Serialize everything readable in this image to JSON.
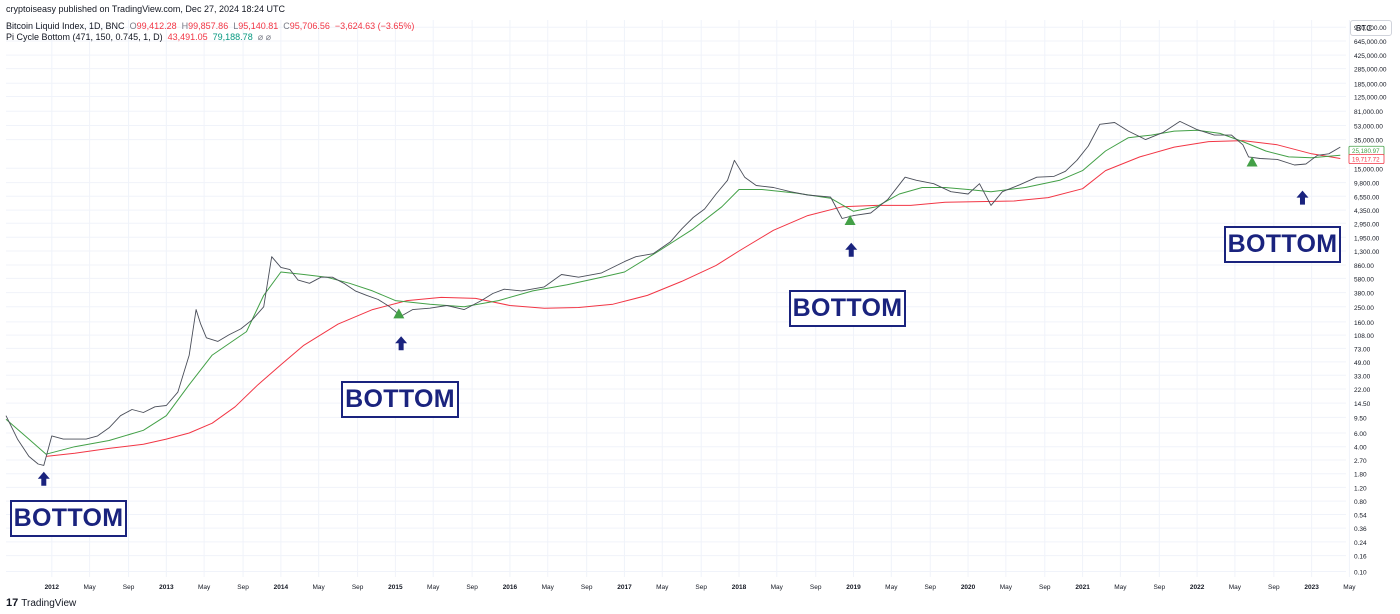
{
  "header": {
    "publish_line": "cryptoiseasy published on TradingView.com, Dec 27, 2024 18:24 UTC",
    "symbol_desc": "Bitcoin Liquid Index, 1D, BNC",
    "open_label": "O",
    "open_value": "99,412.28",
    "high_label": "H",
    "high_value": "99,857.86",
    "low_label": "L",
    "low_value": "95,140.81",
    "close_label": "C",
    "close_value": "95,706.56",
    "change_value": "−3,624.63 (−3.65%)",
    "indicator_desc": "Pi Cycle Bottom (471, 150, 0.745, 1, D)",
    "indicator_value_red": "43,491.05",
    "indicator_value_green": "79,188.78",
    "indicator_flags": "⌀  ⌀"
  },
  "ticker": "BTC",
  "brand": {
    "mark": "17",
    "name": "TradingView"
  },
  "colors": {
    "price": "#4a4e59",
    "green_ma": "#43a047",
    "red_ma": "#f23645",
    "annotation": "#1a237e",
    "marker": "#43a047",
    "grid": "#f0f3fa"
  },
  "annotations": [
    {
      "text": "BOTTOM",
      "arrow_year": 2011.93,
      "arrow_price": 1.55
    },
    {
      "text": "BOTTOM",
      "arrow_year": 2015.05,
      "arrow_price": 85
    },
    {
      "text": "BOTTOM",
      "arrow_year": 2018.98,
      "arrow_price": 1350
    },
    {
      "text": "BOTTOM",
      "arrow_year": 2022.92,
      "arrow_price": 6300
    }
  ],
  "chart_data": {
    "type": "line",
    "y_scale": "log",
    "x_unit": "year",
    "xlim": [
      2011.6,
      2023.3
    ],
    "ylim": [
      0.085,
      1200000
    ],
    "grid": true,
    "x_ticks": [
      {
        "x": 2012.0,
        "label": "2012",
        "major": true
      },
      {
        "x": 2012.33,
        "label": "May"
      },
      {
        "x": 2012.67,
        "label": "Sep"
      },
      {
        "x": 2013.0,
        "label": "2013",
        "major": true
      },
      {
        "x": 2013.33,
        "label": "May"
      },
      {
        "x": 2013.67,
        "label": "Sep"
      },
      {
        "x": 2014.0,
        "label": "2014",
        "major": true
      },
      {
        "x": 2014.33,
        "label": "May"
      },
      {
        "x": 2014.67,
        "label": "Sep"
      },
      {
        "x": 2015.0,
        "label": "2015",
        "major": true
      },
      {
        "x": 2015.33,
        "label": "May"
      },
      {
        "x": 2015.67,
        "label": "Sep"
      },
      {
        "x": 2016.0,
        "label": "2016",
        "major": true
      },
      {
        "x": 2016.33,
        "label": "May"
      },
      {
        "x": 2016.67,
        "label": "Sep"
      },
      {
        "x": 2017.0,
        "label": "2017",
        "major": true
      },
      {
        "x": 2017.33,
        "label": "May"
      },
      {
        "x": 2017.67,
        "label": "Sep"
      },
      {
        "x": 2018.0,
        "label": "2018",
        "major": true
      },
      {
        "x": 2018.33,
        "label": "May"
      },
      {
        "x": 2018.67,
        "label": "Sep"
      },
      {
        "x": 2019.0,
        "label": "2019",
        "major": true
      },
      {
        "x": 2019.33,
        "label": "May"
      },
      {
        "x": 2019.67,
        "label": "Sep"
      },
      {
        "x": 2020.0,
        "label": "2020",
        "major": true
      },
      {
        "x": 2020.33,
        "label": "May"
      },
      {
        "x": 2020.67,
        "label": "Sep"
      },
      {
        "x": 2021.0,
        "label": "2021",
        "major": true
      },
      {
        "x": 2021.33,
        "label": "May"
      },
      {
        "x": 2021.67,
        "label": "Sep"
      },
      {
        "x": 2022.0,
        "label": "2022",
        "major": true
      },
      {
        "x": 2022.33,
        "label": "May"
      },
      {
        "x": 2022.67,
        "label": "Sep"
      },
      {
        "x": 2023.0,
        "label": "2023",
        "major": true
      },
      {
        "x": 2023.33,
        "label": "May"
      }
    ],
    "y_ticks": [
      {
        "v": 970000,
        "label": "970,000.00"
      },
      {
        "v": 645000,
        "label": "645,000.00"
      },
      {
        "v": 425000,
        "label": "425,000.00"
      },
      {
        "v": 285000,
        "label": "285,000.00"
      },
      {
        "v": 185000,
        "label": "185,000.00"
      },
      {
        "v": 125000,
        "label": "125,000.00"
      },
      {
        "v": 81000,
        "label": "81,000.00"
      },
      {
        "v": 53000,
        "label": "53,000.00"
      },
      {
        "v": 35000,
        "label": "35,000.00"
      },
      {
        "v": 15000,
        "label": "15,000.00"
      },
      {
        "v": 9800,
        "label": "9,800.00"
      },
      {
        "v": 6550,
        "label": "6,550.00"
      },
      {
        "v": 4350,
        "label": "4,350.00"
      },
      {
        "v": 2950,
        "label": "2,950.00"
      },
      {
        "v": 1950,
        "label": "1,950.00"
      },
      {
        "v": 1300,
        "label": "1,300.00"
      },
      {
        "v": 860,
        "label": "860.00"
      },
      {
        "v": 580,
        "label": "580.00"
      },
      {
        "v": 380,
        "label": "380.00"
      },
      {
        "v": 250,
        "label": "250.00"
      },
      {
        "v": 160,
        "label": "160.00"
      },
      {
        "v": 108,
        "label": "108.00"
      },
      {
        "v": 73,
        "label": "73.00"
      },
      {
        "v": 49,
        "label": "49.00"
      },
      {
        "v": 33,
        "label": "33.00"
      },
      {
        "v": 22,
        "label": "22.00"
      },
      {
        "v": 14.5,
        "label": "14.50"
      },
      {
        "v": 9.5,
        "label": "9.50"
      },
      {
        "v": 6,
        "label": "6.00"
      },
      {
        "v": 4,
        "label": "4.00"
      },
      {
        "v": 2.7,
        "label": "2.70"
      },
      {
        "v": 1.8,
        "label": "1.80"
      },
      {
        "v": 1.2,
        "label": "1.20"
      },
      {
        "v": 0.8,
        "label": "0.80"
      },
      {
        "v": 0.54,
        "label": "0.54"
      },
      {
        "v": 0.36,
        "label": "0.36"
      },
      {
        "v": 0.24,
        "label": "0.24"
      },
      {
        "v": 0.16,
        "label": "0.16"
      },
      {
        "v": 0.1,
        "label": "0.10"
      }
    ],
    "value_tags": [
      {
        "v": 25180.97,
        "label": "25,180.97",
        "color": "#43a047"
      },
      {
        "v": 19717.72,
        "label": "19,717.72",
        "color": "#f23645"
      }
    ],
    "series": [
      {
        "name": "Bitcoin Liquid Index",
        "x": [
          2011.6,
          2011.7,
          2011.8,
          2011.88,
          2011.93,
          2012.0,
          2012.1,
          2012.2,
          2012.3,
          2012.4,
          2012.5,
          2012.6,
          2012.7,
          2012.8,
          2012.9,
          2013.0,
          2013.1,
          2013.2,
          2013.26,
          2013.3,
          2013.35,
          2013.45,
          2013.55,
          2013.65,
          2013.75,
          2013.85,
          2013.92,
          2014.0,
          2014.08,
          2014.15,
          2014.25,
          2014.35,
          2014.45,
          2014.55,
          2014.65,
          2014.75,
          2014.85,
          2014.95,
          2015.05,
          2015.15,
          2015.3,
          2015.45,
          2015.6,
          2015.75,
          2015.85,
          2015.95,
          2016.1,
          2016.3,
          2016.45,
          2016.6,
          2016.8,
          2017.0,
          2017.1,
          2017.25,
          2017.4,
          2017.5,
          2017.6,
          2017.7,
          2017.8,
          2017.9,
          2017.96,
          2018.05,
          2018.15,
          2018.3,
          2018.45,
          2018.6,
          2018.8,
          2018.9,
          2019.0,
          2019.15,
          2019.3,
          2019.45,
          2019.55,
          2019.7,
          2019.85,
          2020.0,
          2020.1,
          2020.2,
          2020.3,
          2020.45,
          2020.6,
          2020.75,
          2020.85,
          2020.95,
          2021.05,
          2021.15,
          2021.28,
          2021.4,
          2021.55,
          2021.7,
          2021.85,
          2022.0,
          2022.15,
          2022.3,
          2022.4,
          2022.45,
          2022.55,
          2022.7,
          2022.85,
          2022.95,
          2023.05,
          2023.15,
          2023.25
        ],
        "values": [
          10,
          5,
          3,
          2.4,
          2.3,
          5.5,
          5,
          5,
          5,
          5.5,
          7,
          10,
          12,
          11,
          13,
          13.5,
          20,
          60,
          230,
          150,
          100,
          90,
          110,
          130,
          170,
          250,
          1100,
          800,
          750,
          550,
          500,
          600,
          600,
          500,
          400,
          350,
          310,
          250,
          190,
          230,
          240,
          260,
          230,
          300,
          370,
          420,
          400,
          450,
          650,
          600,
          680,
          950,
          1100,
          1200,
          1700,
          2500,
          3500,
          4500,
          7000,
          10500,
          19000,
          11500,
          9000,
          8500,
          7500,
          6800,
          6400,
          3400,
          3700,
          4000,
          6000,
          11500,
          10500,
          9500,
          7500,
          7000,
          9500,
          5000,
          7500,
          9200,
          11500,
          11800,
          13700,
          19000,
          29000,
          55000,
          58000,
          45000,
          35000,
          43000,
          60000,
          47000,
          40000,
          40000,
          30000,
          21000,
          20000,
          19500,
          16500,
          17000,
          22000,
          23000,
          28000
        ]
      },
      {
        "name": "",
        "x": [
          2011.6,
          2011.8,
          2011.95,
          2012.2,
          2012.5,
          2012.8,
          2013.0,
          2013.2,
          2013.4,
          2013.7,
          2013.85,
          2014.0,
          2014.2,
          2014.4,
          2014.6,
          2014.8,
          2015.0,
          2015.3,
          2015.6,
          2015.9,
          2016.2,
          2016.5,
          2016.8,
          2017.0,
          2017.3,
          2017.6,
          2017.85,
          2018.0,
          2018.2,
          2018.5,
          2018.8,
          2019.0,
          2019.2,
          2019.4,
          2019.6,
          2019.8,
          2020.0,
          2020.2,
          2020.5,
          2020.8,
          2021.0,
          2021.2,
          2021.4,
          2021.6,
          2021.8,
          2022.0,
          2022.2,
          2022.4,
          2022.6,
          2022.8,
          2023.0,
          2023.25
        ],
        "values": [
          9,
          5,
          3.2,
          4,
          4.8,
          6.5,
          10,
          25,
          60,
          120,
          350,
          700,
          650,
          600,
          500,
          400,
          300,
          270,
          250,
          300,
          400,
          480,
          600,
          700,
          1300,
          2500,
          4800,
          8000,
          8000,
          7200,
          6200,
          4200,
          4800,
          7000,
          8500,
          8500,
          8000,
          7500,
          8500,
          10500,
          14000,
          25000,
          37000,
          40000,
          45000,
          46000,
          42000,
          33000,
          25000,
          21000,
          20500,
          22000
        ]
      },
      {
        "name": "",
        "x": [
          2011.95,
          2012.2,
          2012.5,
          2012.8,
          2013.0,
          2013.2,
          2013.4,
          2013.6,
          2013.8,
          2014.0,
          2014.2,
          2014.5,
          2014.8,
          2015.1,
          2015.4,
          2015.7,
          2016.0,
          2016.3,
          2016.6,
          2016.9,
          2017.2,
          2017.5,
          2017.8,
          2018.0,
          2018.3,
          2018.6,
          2018.9,
          2019.2,
          2019.5,
          2019.8,
          2020.1,
          2020.4,
          2020.7,
          2021.0,
          2021.2,
          2021.5,
          2021.8,
          2022.1,
          2022.4,
          2022.7,
          2023.0,
          2023.25
        ],
        "values": [
          3,
          3.3,
          3.8,
          4.3,
          5,
          6,
          8,
          13,
          25,
          45,
          80,
          150,
          230,
          300,
          330,
          320,
          260,
          240,
          245,
          270,
          350,
          530,
          850,
          1300,
          2400,
          3700,
          4800,
          5000,
          5000,
          5500,
          5600,
          5700,
          6300,
          8200,
          14000,
          21000,
          28000,
          33000,
          34000,
          30000,
          23000,
          20000
        ]
      }
    ],
    "markers": [
      {
        "x": 2015.03,
        "y": 200
      },
      {
        "x": 2018.97,
        "y": 3150
      },
      {
        "x": 2022.48,
        "y": 17800
      }
    ]
  }
}
